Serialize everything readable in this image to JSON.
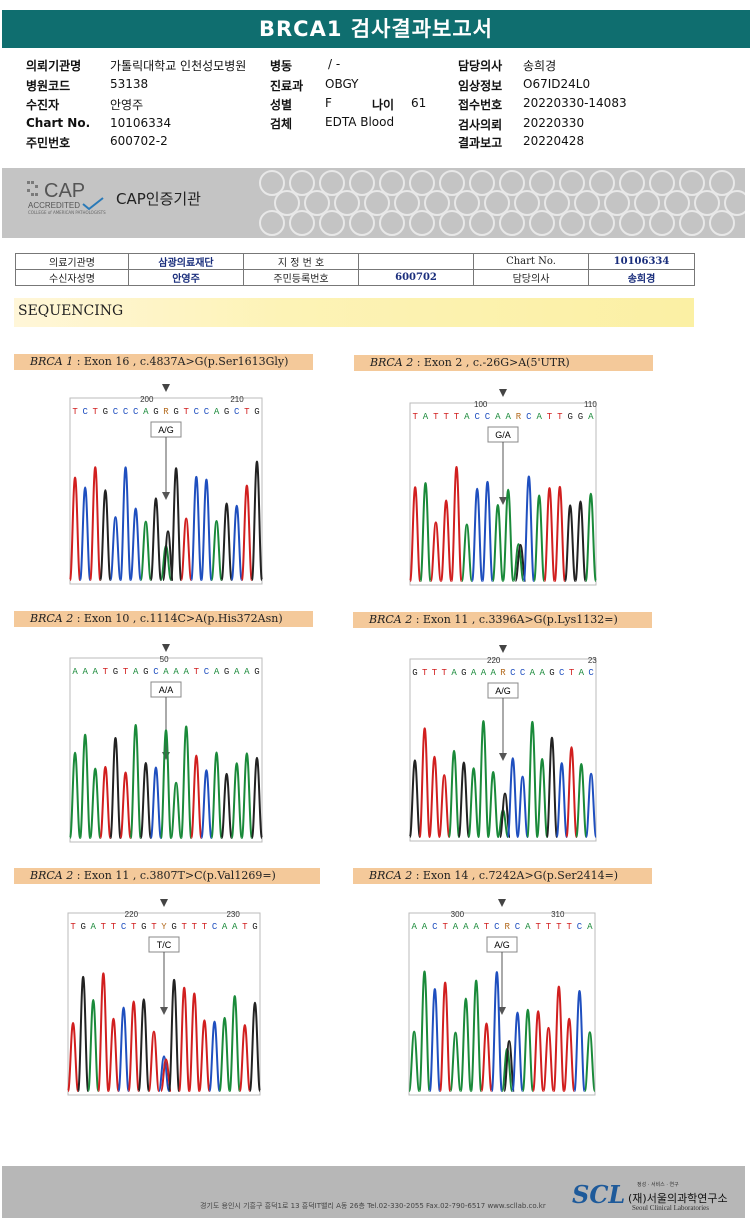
{
  "report": {
    "title": "BRCA1 검사결과보고서"
  },
  "header": {
    "fields": [
      {
        "label": "의뢰기관명",
        "value": "가톨릭대학교 인천성모병원"
      },
      {
        "label": "병원코드",
        "value": "53138"
      },
      {
        "label": "수진자",
        "value": "안영주"
      },
      {
        "label": "Chart No.",
        "value": "10106334"
      },
      {
        "label": "주민번호",
        "value": "600702-2"
      },
      {
        "label": "병동",
        "value": "/ -"
      },
      {
        "label": "진료과",
        "value": "OBGY"
      },
      {
        "label": "성별",
        "value": "F"
      },
      {
        "label": "나이",
        "value": "61"
      },
      {
        "label": "검체",
        "value": "EDTA Blood"
      },
      {
        "label": "담당의사",
        "value": "송희경"
      },
      {
        "label": "임상정보",
        "value": "O67ID24L0"
      },
      {
        "label": "접수번호",
        "value": "20220330-14083"
      },
      {
        "label": "검사의뢰",
        "value": "20220330"
      },
      {
        "label": "결과보고",
        "value": "20220428"
      }
    ]
  },
  "cap": {
    "logo": "CAP",
    "accredited": "ACCREDITED",
    "college": "COLLEGE of AMERICAN PATHOLOGISTS",
    "cert_text": "CAP인증기관"
  },
  "info_table": {
    "r1": [
      "의료기관명",
      "삼광의료재단",
      "지 정 번 호",
      "",
      "Chart No.",
      "10106334"
    ],
    "r2": [
      "수신자성명",
      "안영주",
      "주민등록번호",
      "600702",
      "담당의사",
      "송희경"
    ]
  },
  "section": {
    "title": "SEQUENCING"
  },
  "panels": [
    {
      "gene": "BRCA 1",
      "desc": " : Exon 16 , c.4837A>G(p.Ser1613Gly)",
      "seq": "T C T G C C C A G R G T C C A G C T G",
      "call": "A/G",
      "pos_labels": [
        {
          "t": "200",
          "f": 0.4
        },
        {
          "t": "210",
          "f": 0.87
        }
      ]
    },
    {
      "gene": "BRCA 2",
      "desc": " : Exon 2 , c.-26G>A(5'UTR)",
      "seq": "T A T T T A C C A A R C A T T G G A",
      "call": "G/A",
      "pos_labels": [
        {
          "t": "100",
          "f": 0.38
        },
        {
          "t": "110",
          "f": 0.97
        }
      ]
    },
    {
      "gene": "BRCA 2",
      "desc": " : Exon 10 , c.1114C>A(p.His372Asn)",
      "seq": "A A A T G T A G C A A A T C A G A A G",
      "call": "A/A",
      "pos_labels": [
        {
          "t": "50",
          "f": 0.49
        }
      ]
    },
    {
      "gene": "BRCA 2",
      "desc": " : Exon 11 , c.3396A>G(p.Lys1132=)",
      "seq": "G T T T A G A A A R C C A A G C T A C",
      "call": "A/G",
      "pos_labels": [
        {
          "t": "220",
          "f": 0.45
        },
        {
          "t": "23",
          "f": 0.98
        }
      ]
    },
    {
      "gene": "BRCA 2",
      "desc": " : Exon 11 , c.3807T>C(p.Val1269=)",
      "seq": "T G A T T C T G T Y G T T T C A A T G",
      "call": "T/C",
      "pos_labels": [
        {
          "t": "220",
          "f": 0.33
        },
        {
          "t": "230",
          "f": 0.86
        }
      ]
    },
    {
      "gene": "BRCA 2",
      "desc": " : Exon 14 , c.7242A>G(p.Ser2414=)",
      "seq": "A A C T A A A T C R C A T T T T C A",
      "call": "A/G",
      "pos_labels": [
        {
          "t": "300",
          "f": 0.26
        },
        {
          "t": "310",
          "f": 0.8
        }
      ]
    }
  ],
  "colors": {
    "A": "#1a8a3a",
    "C": "#1f4fbf",
    "G": "#222222",
    "T": "#d11f1f",
    "brand": "#0f6e6f"
  },
  "footer": {
    "address": "경기도 용인시 기흥구 흥덕1로 13 흥덕IT밸리 A동 26층  Tel.02-330-2055  Fax.02-790-6517  www.scllab.co.kr",
    "logo": "SCL",
    "tagline": "정성 · 서비스 · 연구",
    "name_ko": "(재)서울의과학연구소",
    "name_en": "Seoul Clinical Laboratories"
  }
}
